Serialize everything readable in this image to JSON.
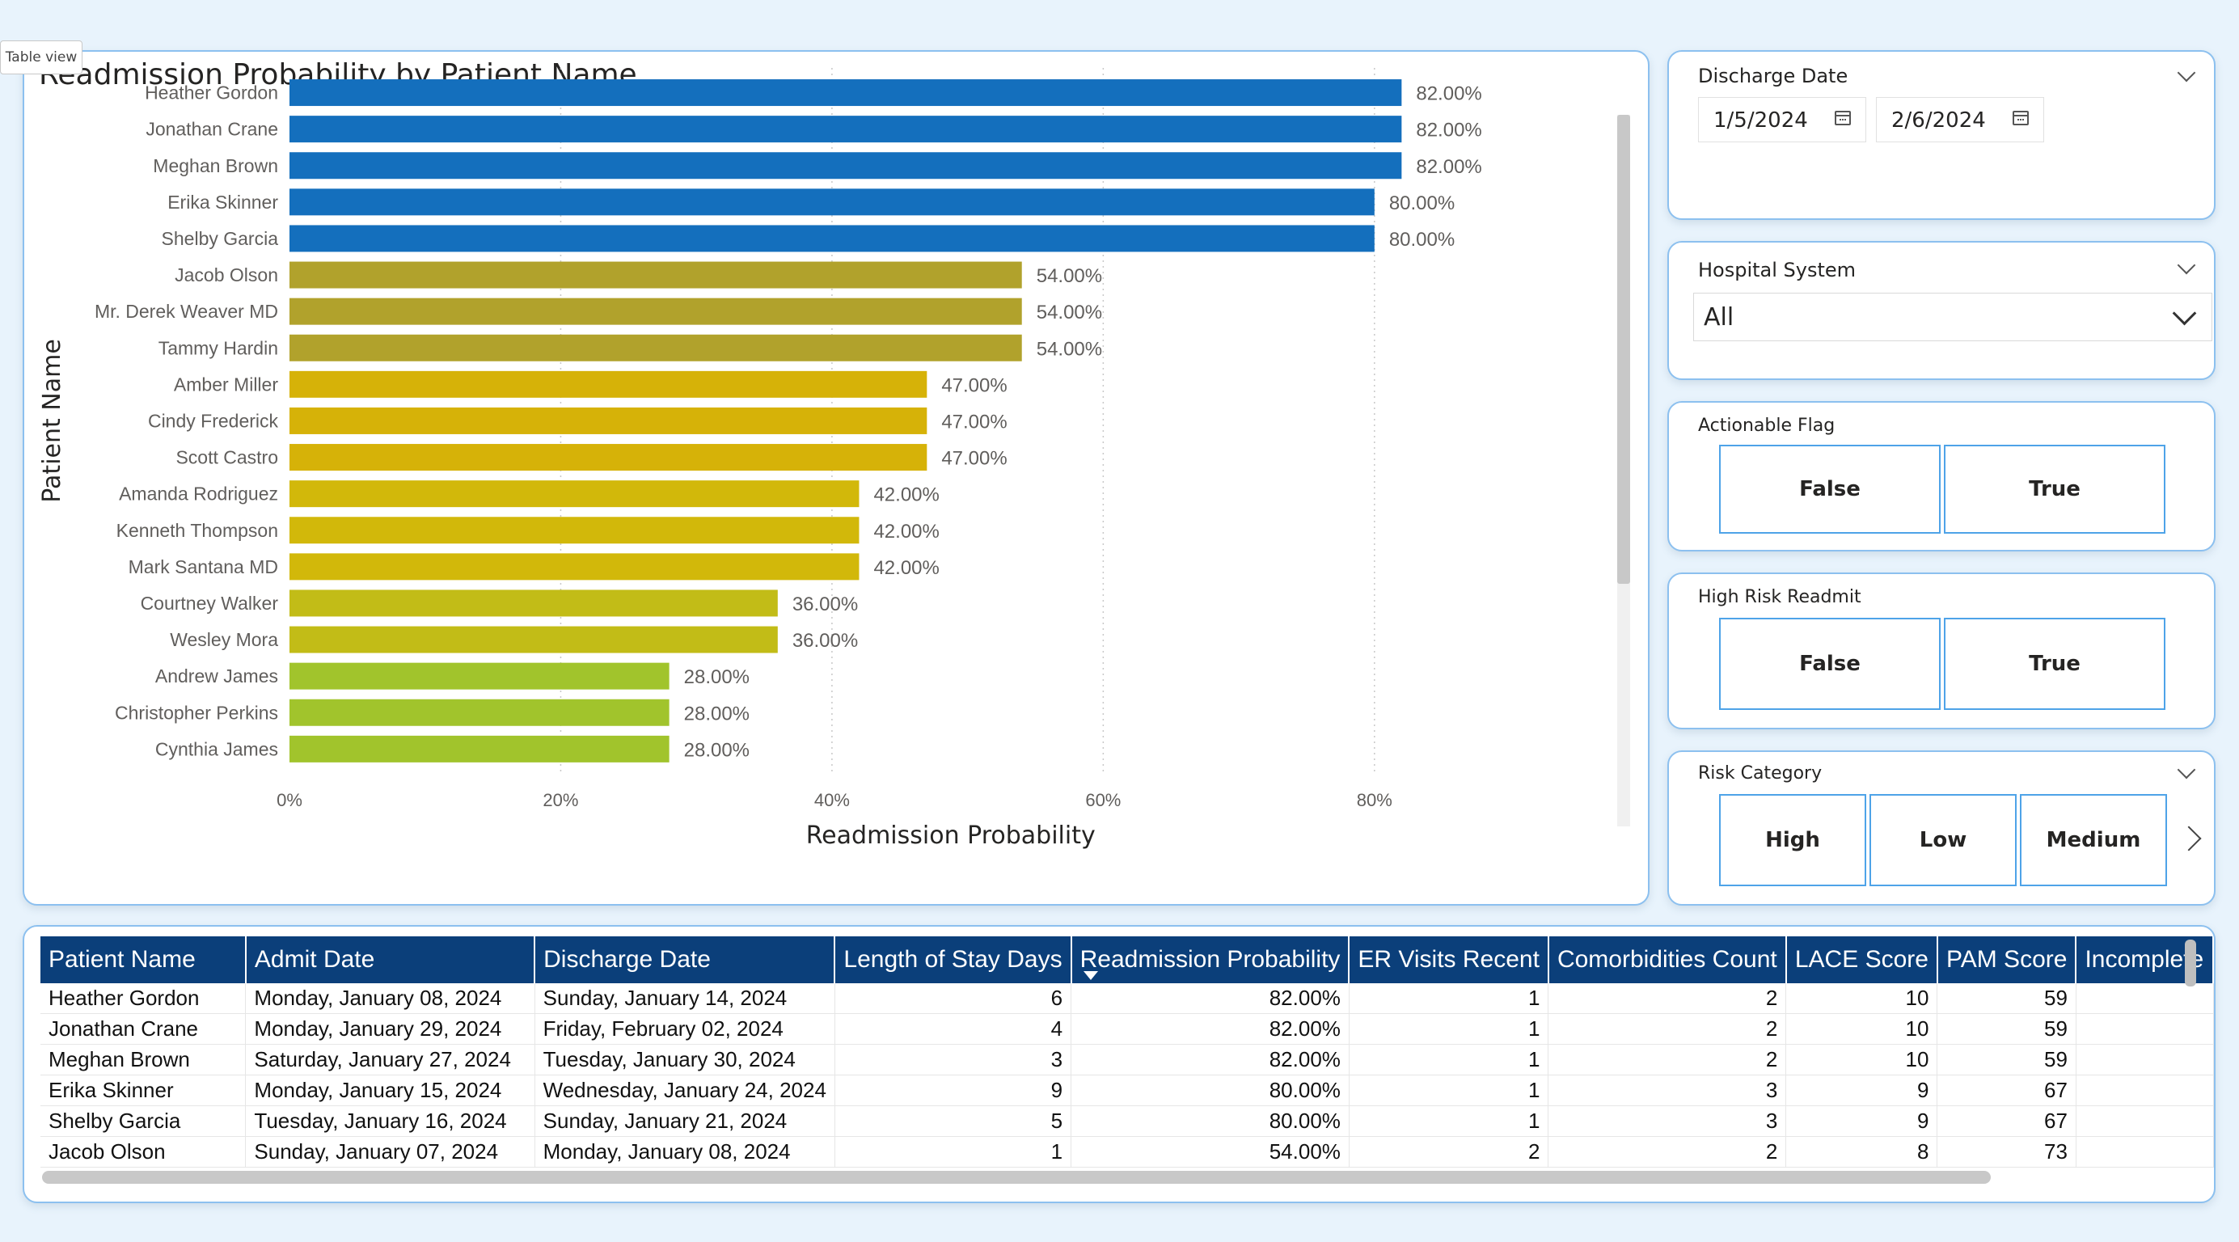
{
  "tooltip_tab": "Table view",
  "chart_card": {
    "title": "Readmission Probability by Patient Name"
  },
  "chart_data": {
    "type": "bar",
    "orientation": "horizontal",
    "title": "Readmission Probability by Patient Name",
    "xlabel": "Readmission Probability",
    "ylabel": "Patient Name",
    "xlim": [
      0,
      0.88
    ],
    "x_ticks": [
      0,
      0.2,
      0.4,
      0.6,
      0.8
    ],
    "x_tick_labels": [
      "0%",
      "20%",
      "40%",
      "60%",
      "80%"
    ],
    "grid": "vertical dotted",
    "categories": [
      "Heather Gordon",
      "Jonathan Crane",
      "Meghan Brown",
      "Erika Skinner",
      "Shelby Garcia",
      "Jacob Olson",
      "Mr. Derek Weaver MD",
      "Tammy Hardin",
      "Amber Miller",
      "Cindy Frederick",
      "Scott Castro",
      "Amanda Rodriguez",
      "Kenneth Thompson",
      "Mark Santana MD",
      "Courtney Walker",
      "Wesley Mora",
      "Andrew James",
      "Christopher Perkins",
      "Cynthia James"
    ],
    "values": [
      0.82,
      0.82,
      0.82,
      0.8,
      0.8,
      0.54,
      0.54,
      0.54,
      0.47,
      0.47,
      0.47,
      0.42,
      0.42,
      0.42,
      0.36,
      0.36,
      0.28,
      0.28,
      0.28
    ],
    "value_labels": [
      "82.00%",
      "82.00%",
      "82.00%",
      "80.00%",
      "80.00%",
      "54.00%",
      "54.00%",
      "54.00%",
      "47.00%",
      "47.00%",
      "47.00%",
      "42.00%",
      "42.00%",
      "42.00%",
      "36.00%",
      "36.00%",
      "28.00%",
      "28.00%",
      "28.00%"
    ],
    "bar_colors": [
      "#146fbd",
      "#146fbd",
      "#146fbd",
      "#146fbd",
      "#146fbd",
      "#b1a22c",
      "#b1a22c",
      "#b1a22c",
      "#d6b208",
      "#d6b208",
      "#d6b208",
      "#d2b80a",
      "#d2b80a",
      "#d2b80a",
      "#c2bc17",
      "#c2bc17",
      "#a1c42c",
      "#a1c42c",
      "#a1c42c"
    ]
  },
  "slicers": {
    "discharge_date": {
      "title": "Discharge Date",
      "start": "1/5/2024",
      "end": "2/6/2024"
    },
    "hospital_system": {
      "title": "Hospital System",
      "value": "All"
    },
    "actionable_flag": {
      "title": "Actionable Flag",
      "options": [
        "False",
        "True"
      ]
    },
    "high_risk_readmit": {
      "title": "High Risk Readmit",
      "options": [
        "False",
        "True"
      ]
    },
    "risk_category": {
      "title": "Risk Category",
      "options": [
        "High",
        "Low",
        "Medium"
      ]
    }
  },
  "table": {
    "columns": [
      "Patient Name",
      "Admit Date",
      "Discharge Date",
      "Length of Stay Days",
      "Readmission Probability",
      "ER Visits Recent",
      "Comorbidities Count",
      "LACE Score",
      "PAM Score",
      "Incomplete"
    ],
    "sorted_column": "Readmission Probability",
    "rows": [
      [
        "Heather Gordon",
        "Monday, January 08, 2024",
        "Sunday, January 14, 2024",
        "6",
        "82.00%",
        "1",
        "2",
        "10",
        "59",
        ""
      ],
      [
        "Jonathan Crane",
        "Monday, January 29, 2024",
        "Friday, February 02, 2024",
        "4",
        "82.00%",
        "1",
        "2",
        "10",
        "59",
        ""
      ],
      [
        "Meghan Brown",
        "Saturday, January 27, 2024",
        "Tuesday, January 30, 2024",
        "3",
        "82.00%",
        "1",
        "2",
        "10",
        "59",
        ""
      ],
      [
        "Erika Skinner",
        "Monday, January 15, 2024",
        "Wednesday, January 24, 2024",
        "9",
        "80.00%",
        "1",
        "3",
        "9",
        "67",
        ""
      ],
      [
        "Shelby Garcia",
        "Tuesday, January 16, 2024",
        "Sunday, January 21, 2024",
        "5",
        "80.00%",
        "1",
        "3",
        "9",
        "67",
        ""
      ],
      [
        "Jacob Olson",
        "Sunday, January 07, 2024",
        "Monday, January 08, 2024",
        "1",
        "54.00%",
        "2",
        "2",
        "8",
        "73",
        ""
      ]
    ]
  }
}
